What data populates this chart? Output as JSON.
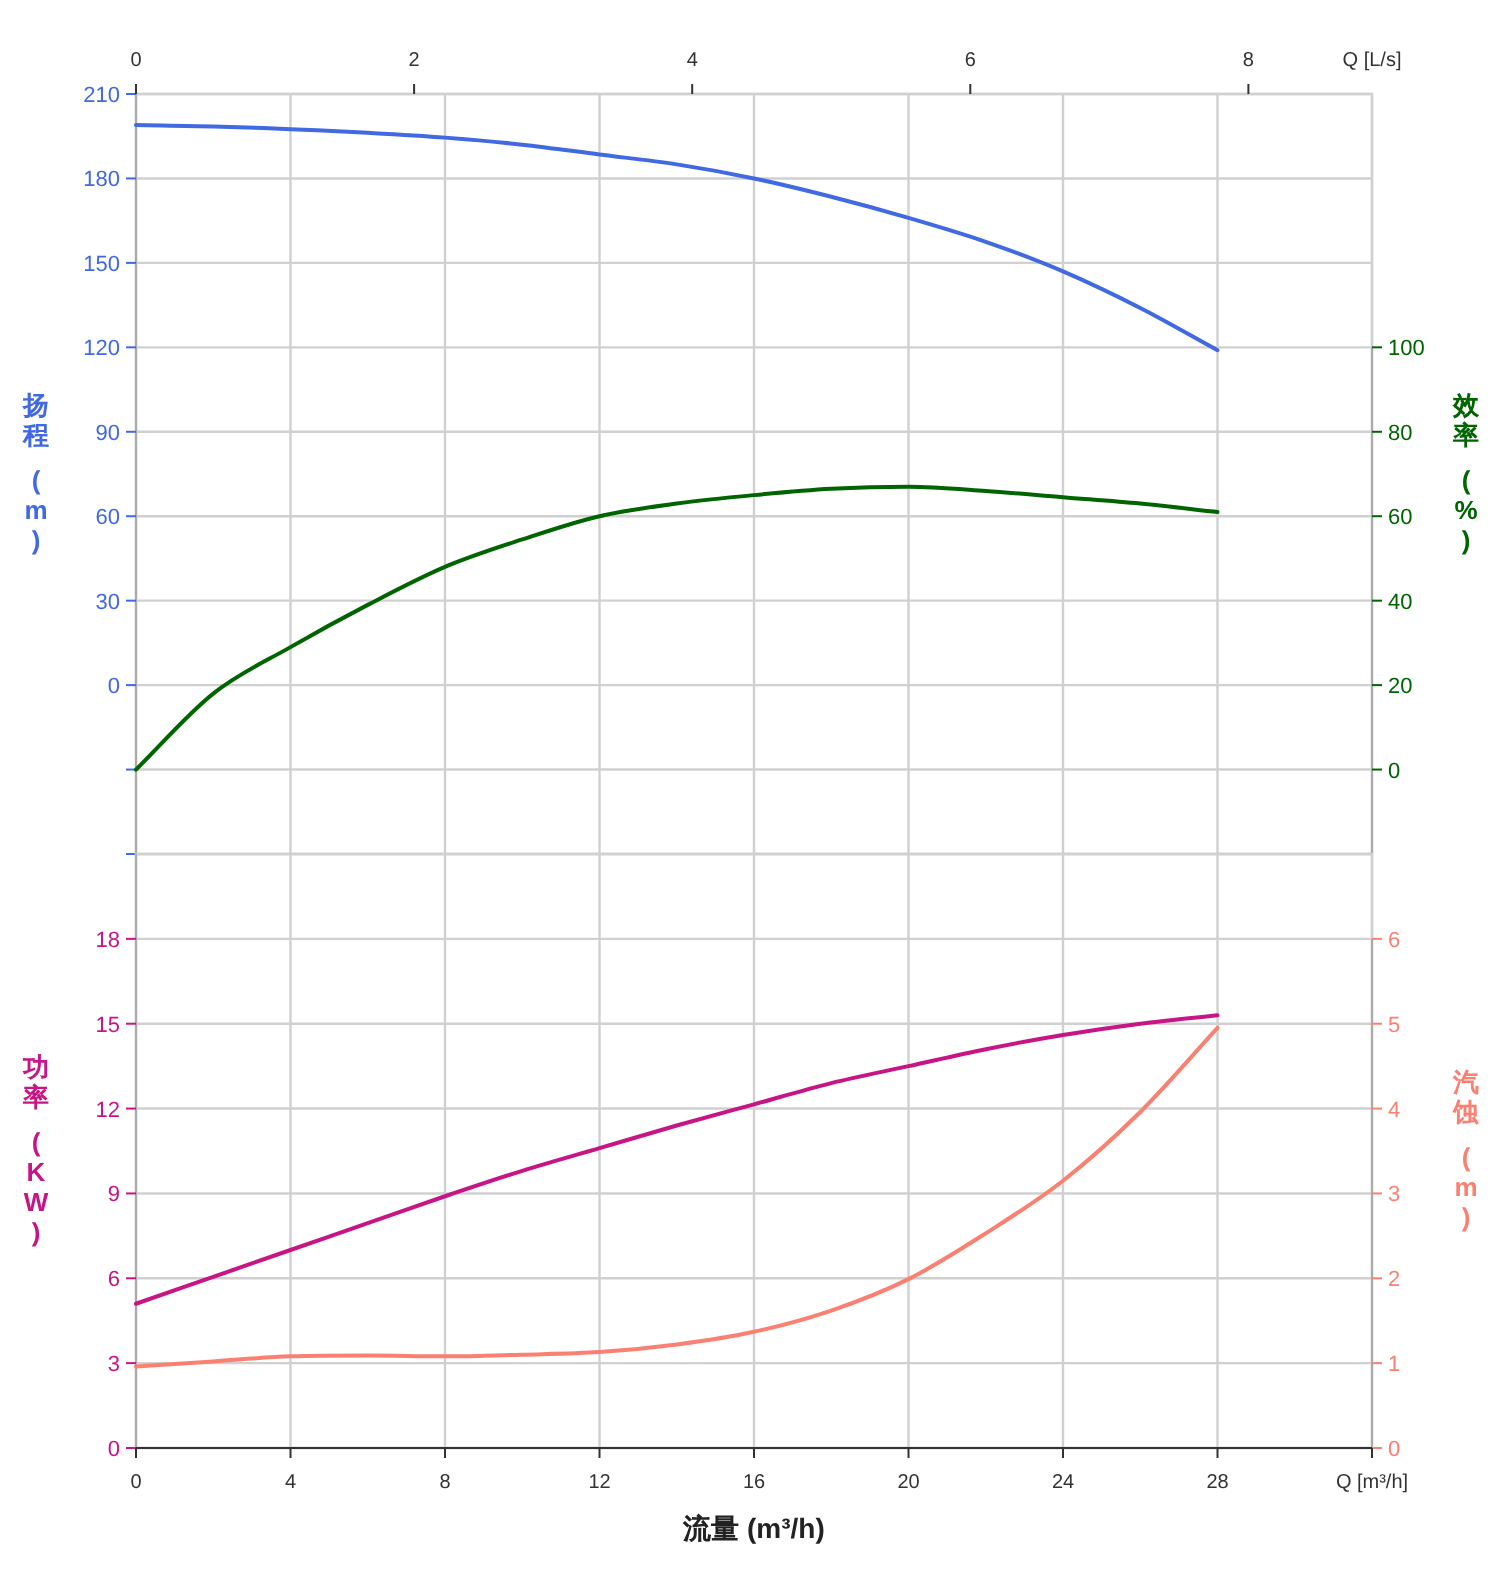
{
  "chart_data": [
    {
      "type": "line",
      "ylabel": "扬程 (m)",
      "y2label": "效率 (%)",
      "x2label": "Q [L/s]",
      "xlim": [
        0,
        32
      ],
      "xticks": [
        0,
        4,
        8,
        12,
        16,
        20,
        24,
        28,
        32
      ],
      "tick_labels": "y",
      "x2lim": [
        0,
        8.889
      ],
      "x2ticks": [
        0,
        2,
        4,
        6,
        8
      ],
      "ylim": [
        -60,
        210
      ],
      "yticks": [
        {
          "value": -60,
          "label": null
        },
        {
          "value": -30,
          "label": null
        },
        0,
        30,
        60,
        90,
        120,
        150,
        180,
        210
      ],
      "y2lim": [
        -20,
        160
      ],
      "y2ticks": [
        0,
        20,
        40,
        60,
        80,
        100
      ],
      "grid": true,
      "x": [
        0,
        2,
        4,
        6,
        8,
        10,
        12,
        14,
        16,
        18,
        20,
        22,
        24,
        26,
        28
      ],
      "series": [
        {
          "color": "#4169e1",
          "values": [
            199,
            198.5,
            197.5,
            196.2,
            194.5,
            192,
            188.5,
            185,
            180,
            173.5,
            166,
            157.5,
            147,
            134,
            119
          ]
        },
        {
          "color": "#006400",
          "axis": "y2",
          "values": [
            0,
            18,
            29,
            39,
            48,
            54.5,
            60,
            63,
            65,
            66.5,
            67,
            66,
            64.5,
            63,
            61
          ]
        }
      ]
    },
    {
      "type": "line",
      "ylabel": "功率 (KW)",
      "y2label": "汽蚀 (m)",
      "xlabel": "流量 (m³/h)",
      "xlim": [
        0,
        32
      ],
      "xticks": [
        0,
        4,
        8,
        12,
        16,
        20,
        24,
        28,
        {
          "value": 32,
          "label": "Q [m³/h]"
        }
      ],
      "ylim": [
        0,
        21
      ],
      "yticks": [
        0,
        3,
        6,
        9,
        12,
        15,
        18
      ],
      "y2lim": [
        0,
        7
      ],
      "y2ticks": [
        0,
        1,
        2,
        3,
        4,
        5,
        6
      ],
      "grid": true,
      "x": [
        0,
        2,
        4,
        6,
        8,
        10,
        12,
        14,
        16,
        18,
        20,
        22,
        24,
        26,
        28
      ],
      "series": [
        {
          "color": "#c71585",
          "values": [
            5.1,
            6.05,
            7.0,
            7.95,
            8.9,
            9.8,
            10.6,
            11.4,
            12.15,
            12.9,
            13.5,
            14.1,
            14.6,
            15.0,
            15.3
          ]
        },
        {
          "color": "#fa8072",
          "axis": "y2",
          "values": [
            0.96,
            1.02,
            1.08,
            1.09,
            1.08,
            1.1,
            1.13,
            1.22,
            1.37,
            1.62,
            1.99,
            2.53,
            3.15,
            3.96,
            4.95
          ]
        }
      ]
    }
  ]
}
